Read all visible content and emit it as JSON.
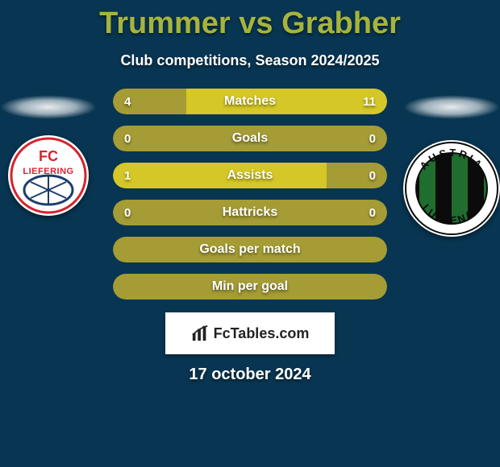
{
  "title": "Trummer vs Grabher",
  "subtitle": "Club competitions, Season 2024/2025",
  "date": "17 october 2024",
  "watermark": "FcTables.com",
  "title_color": "#a7b43c",
  "bar_color_neutral": "#a59c35",
  "bar_color_highlight": "#d4c727",
  "left_club": {
    "name": "FC Liefering",
    "badge_text_top": "FC",
    "badge_text_bottom": "LIEFERING",
    "ring_color": "#d7232e",
    "text_color": "#d7232e"
  },
  "right_club": {
    "name": "Austria Lustenau",
    "badge_text_top": "AUSTRIA",
    "badge_text_bottom": "LUSTENAU",
    "stripe_a": "#1f6d2f",
    "stripe_b": "#0b0b0b",
    "ring_color": "#fff"
  },
  "rows": [
    {
      "label": "Matches",
      "left": "4",
      "right": "11",
      "left_pct": 26.7,
      "right_pct": 73.3,
      "mode": "split"
    },
    {
      "label": "Goals",
      "left": "0",
      "right": "0",
      "mode": "full"
    },
    {
      "label": "Assists",
      "left": "1",
      "right": "0",
      "left_pct": 100,
      "right_pct": 0,
      "mode": "split-left"
    },
    {
      "label": "Hattricks",
      "left": "0",
      "right": "0",
      "mode": "full"
    },
    {
      "label": "Goals per match",
      "left": "",
      "right": "",
      "mode": "full"
    },
    {
      "label": "Min per goal",
      "left": "",
      "right": "",
      "mode": "full"
    }
  ]
}
